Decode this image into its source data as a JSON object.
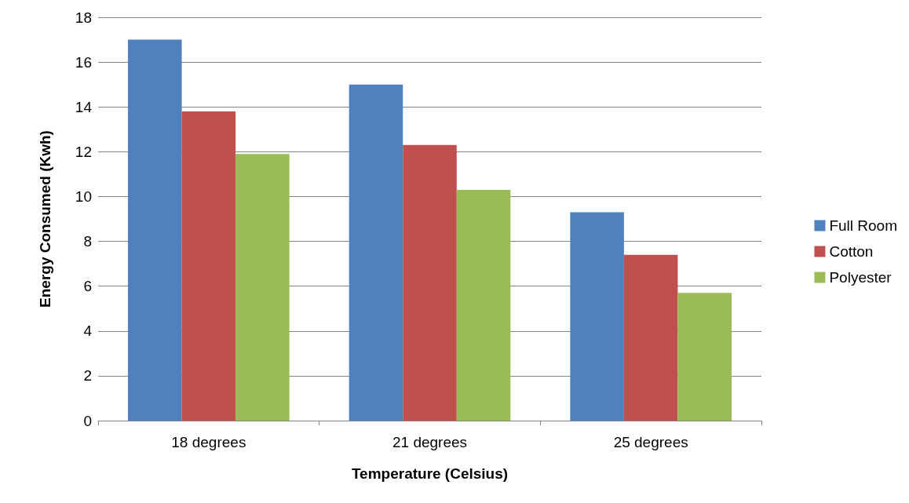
{
  "chart_data": {
    "type": "bar",
    "xlabel": "Temperature (Celsius)",
    "ylabel": "Energy Consumed (Kwh)",
    "categories": [
      "18 degrees",
      "21 degrees",
      "25 degrees"
    ],
    "series": [
      {
        "name": "Full Room",
        "color": "#4f81bd",
        "values": [
          17,
          15,
          9.3
        ]
      },
      {
        "name": "Cotton",
        "color": "#c0504d",
        "values": [
          13.8,
          12.3,
          7.4
        ]
      },
      {
        "name": "Polyester",
        "color": "#9bbb59",
        "values": [
          11.9,
          10.3,
          5.7
        ]
      }
    ],
    "ylim": [
      0,
      18
    ],
    "yticks": [
      0,
      2,
      4,
      6,
      8,
      10,
      12,
      14,
      16,
      18
    ],
    "grid": "y",
    "legend": "right"
  }
}
